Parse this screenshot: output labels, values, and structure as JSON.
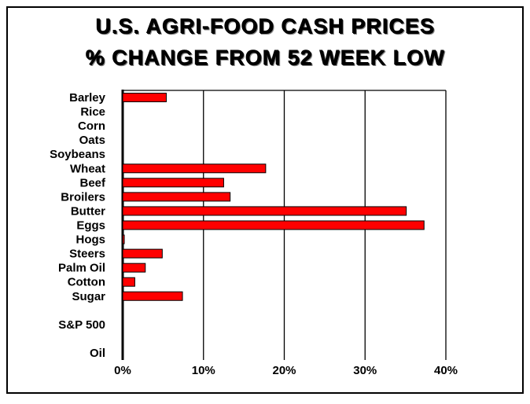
{
  "chart_data": {
    "type": "bar",
    "orientation": "horizontal",
    "title": "U.S. AGRI-FOOD CASH PRICES",
    "subtitle": "% CHANGE FROM 52 WEEK LOW",
    "categories": [
      "Barley",
      "Rice",
      "Corn",
      "Oats",
      "Soybeans",
      "Wheat",
      "Beef",
      "Broilers",
      "Butter",
      "Eggs",
      "Hogs",
      "Steers",
      "Palm Oil",
      "Cotton",
      "Sugar",
      "S&P 500",
      "Oil"
    ],
    "values": [
      5.4,
      0,
      0,
      0,
      0,
      17.7,
      12.5,
      13.3,
      35.1,
      37.3,
      0.2,
      4.9,
      2.8,
      1.5,
      7.4,
      0,
      0
    ],
    "xlim": [
      0,
      40
    ],
    "xticks": [
      "0%",
      "10%",
      "20%",
      "30%",
      "40%"
    ],
    "xtick_values": [
      0,
      10,
      20,
      30,
      40
    ],
    "xlabel": "",
    "ylabel": "",
    "grid": "vertical",
    "colors": {
      "bar": "#ff0000",
      "outline": "#000000"
    }
  }
}
